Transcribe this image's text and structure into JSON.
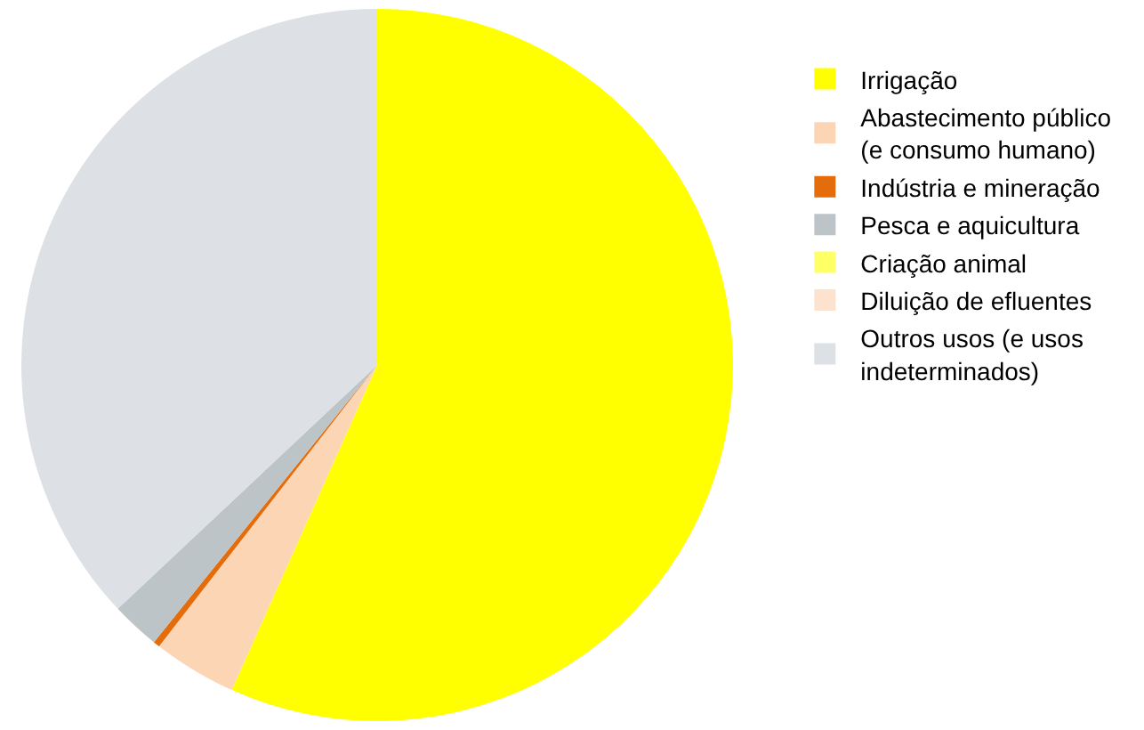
{
  "chart_data": {
    "type": "pie",
    "categories": [
      "Irrigação",
      "Abastecimento público (e consumo humano)",
      "Indústria e mineração",
      "Pesca e aquicultura",
      "Criação animal",
      "Diluição de efluentes",
      "Outros usos (e usos indeterminados)"
    ],
    "values": [
      56.7,
      3.8,
      0.3,
      2.2,
      0,
      0,
      37.0
    ],
    "colors": [
      "#ffff00",
      "#fcd5b5",
      "#e46c0a",
      "#bcc4c8",
      "#ffff66",
      "#fde2d0",
      "#dde0e4"
    ],
    "legend": "right"
  }
}
